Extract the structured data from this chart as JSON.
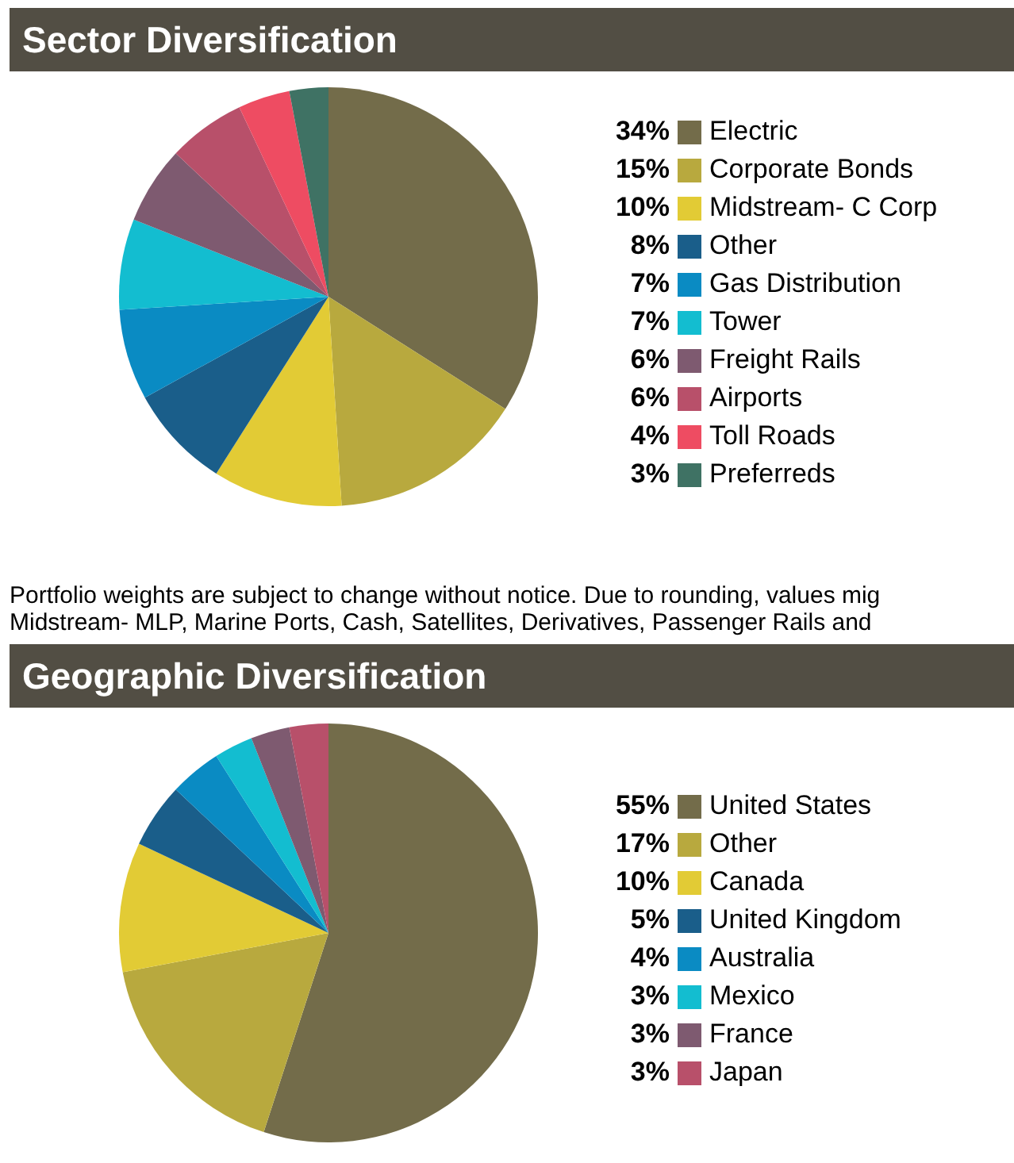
{
  "chart_data": [
    {
      "type": "pie",
      "title": "Sector Diversification",
      "categories": [
        "Electric",
        "Corporate Bonds",
        "Midstream- C Corp",
        "Other",
        "Gas Distribution",
        "Tower",
        "Freight Rails",
        "Airports",
        "Toll Roads",
        "Preferreds"
      ],
      "values": [
        34,
        15,
        10,
        8,
        7,
        7,
        6,
        6,
        4,
        3
      ],
      "colors": [
        "#736c4a",
        "#b8a93e",
        "#e2cb35",
        "#1a5e8a",
        "#0a8bc3",
        "#13bdd0",
        "#7e5a70",
        "#b8506a",
        "#ee4c62",
        "#3f7264"
      ],
      "value_labels": [
        "34%",
        "15%",
        "10%",
        "8%",
        "7%",
        "7%",
        "6%",
        "6%",
        "4%",
        "3%"
      ],
      "legend": "right",
      "annotations": [
        "Portfolio weights are subject to change without notice. Due to rounding, values mig",
        "Midstream- MLP, Marine Ports, Cash, Satellites, Derivatives, Passenger Rails and"
      ]
    },
    {
      "type": "pie",
      "title": "Geographic Diversification",
      "categories": [
        "United States",
        "Other",
        "Canada",
        "United Kingdom",
        "Australia",
        "Mexico",
        "France",
        "Japan"
      ],
      "values": [
        55,
        17,
        10,
        5,
        4,
        3,
        3,
        3
      ],
      "colors": [
        "#736c4a",
        "#b8a93e",
        "#e2cb35",
        "#1a5e8a",
        "#0a8bc3",
        "#13bdd0",
        "#7e5a70",
        "#b8506a"
      ],
      "value_labels": [
        "55%",
        "17%",
        "10%",
        "5%",
        "4%",
        "3%",
        "3%",
        "3%"
      ],
      "legend": "right"
    }
  ]
}
